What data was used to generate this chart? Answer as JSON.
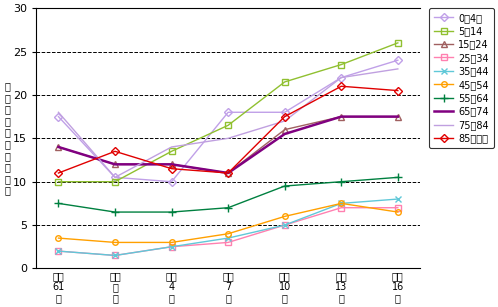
{
  "x_labels": [
    "昭和\n61\n年",
    "平成\n元\n年",
    "平成\n4\n年",
    "平成\n7\n年",
    "平成\n10\n年",
    "平成\n13\n年",
    "平成\n16\n年"
  ],
  "x_positions": [
    0,
    1,
    2,
    3,
    4,
    5,
    6
  ],
  "series": [
    {
      "label": "0～4歳",
      "color": "#c0a0e8",
      "marker": "D",
      "markersize": 4,
      "markerfacecolor": "none",
      "linewidth": 1.0,
      "values": [
        17.5,
        10.5,
        10.0,
        18.0,
        18.0,
        22.0,
        24.0
      ]
    },
    {
      "label": "5～14",
      "color": "#90c030",
      "marker": "s",
      "markersize": 4,
      "markerfacecolor": "none",
      "linewidth": 1.0,
      "values": [
        10.0,
        10.0,
        13.5,
        16.5,
        21.5,
        23.5,
        26.0
      ]
    },
    {
      "label": "15～24",
      "color": "#a06060",
      "marker": "^",
      "markersize": 4,
      "markerfacecolor": "none",
      "linewidth": 1.0,
      "values": [
        14.0,
        12.0,
        12.0,
        11.0,
        16.0,
        17.5,
        17.5
      ]
    },
    {
      "label": "25～34",
      "color": "#ff80b0",
      "marker": "s",
      "markersize": 4,
      "markerfacecolor": "none",
      "linewidth": 1.0,
      "values": [
        2.0,
        1.5,
        2.5,
        3.0,
        5.0,
        7.0,
        7.0
      ]
    },
    {
      "label": "35～44",
      "color": "#60c8d8",
      "marker": "x",
      "markersize": 5,
      "markerfacecolor": "none",
      "linewidth": 1.0,
      "values": [
        2.0,
        1.5,
        2.5,
        3.5,
        5.0,
        7.5,
        8.0
      ]
    },
    {
      "label": "45～54",
      "color": "#ffa000",
      "marker": "o",
      "markersize": 4,
      "markerfacecolor": "none",
      "linewidth": 1.0,
      "values": [
        3.5,
        3.0,
        3.0,
        4.0,
        6.0,
        7.5,
        6.5
      ]
    },
    {
      "label": "55～64",
      "color": "#008040",
      "marker": "+",
      "markersize": 6,
      "markerfacecolor": "#008040",
      "linewidth": 1.0,
      "values": [
        7.5,
        6.5,
        6.5,
        7.0,
        9.5,
        10.0,
        10.5
      ]
    },
    {
      "label": "65～74",
      "color": "#800080",
      "marker": "None",
      "markersize": 4,
      "markerfacecolor": "none",
      "linewidth": 1.8,
      "values": [
        14.0,
        12.0,
        12.0,
        11.0,
        15.5,
        17.5,
        17.5
      ]
    },
    {
      "label": "75～84",
      "color": "#c0a0e0",
      "marker": "None",
      "markersize": 4,
      "markerfacecolor": "none",
      "linewidth": 1.0,
      "values": [
        18.0,
        10.5,
        14.0,
        15.0,
        17.0,
        22.0,
        23.0
      ]
    },
    {
      "label": "85歳以上",
      "color": "#e00000",
      "marker": "D",
      "markersize": 4,
      "markerfacecolor": "none",
      "linewidth": 1.0,
      "values": [
        11.0,
        13.5,
        11.5,
        11.0,
        17.5,
        21.0,
        20.5
      ]
    }
  ],
  "ylabel": "通院者率（人口千対）",
  "ylim": [
    0,
    30
  ],
  "yticks": [
    0,
    5,
    10,
    15,
    20,
    25,
    30
  ],
  "background_color": "#ffffff"
}
